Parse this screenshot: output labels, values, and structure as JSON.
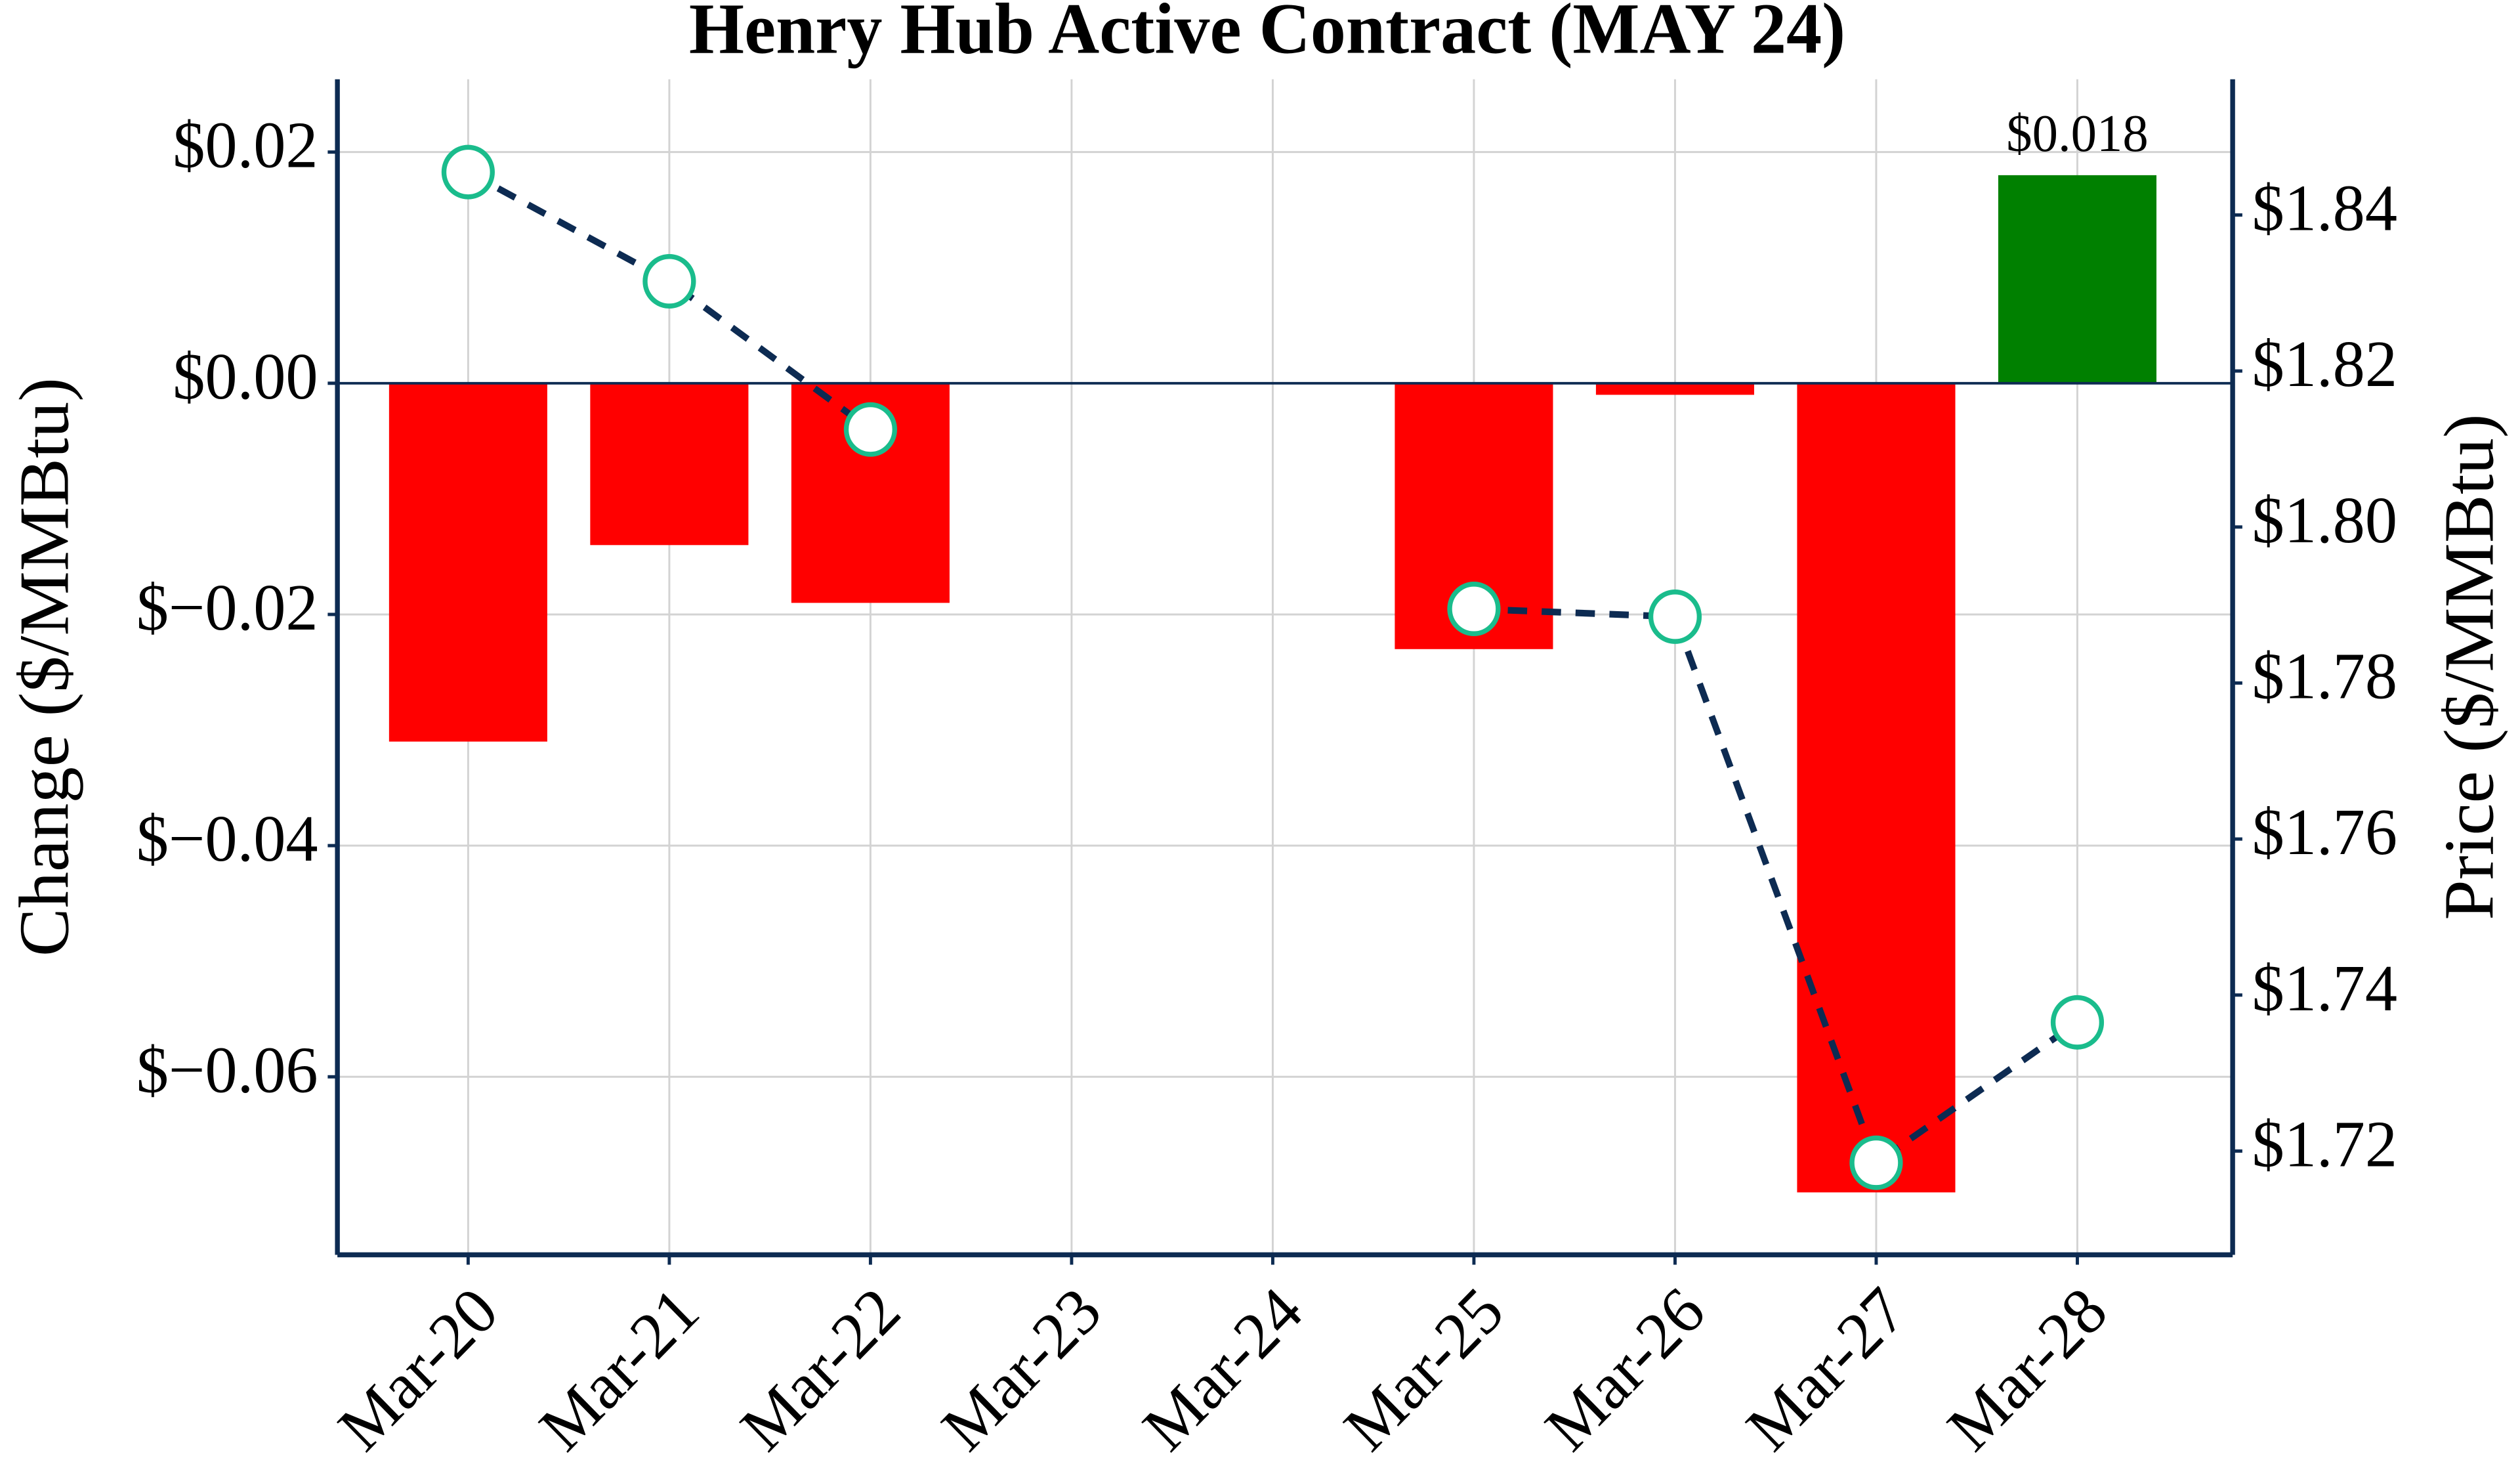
{
  "chart_data": {
    "type": "bar-line",
    "title": "Henry Hub Active Contract (MAY 24)",
    "ylabel": "Change ($/MMBtu)",
    "y2label": "Price ($/MMBtu)",
    "categories": [
      "Mar-20",
      "Mar-21",
      "Mar-22",
      "Mar-23",
      "Mar-24",
      "Mar-25",
      "Mar-26",
      "Mar-27",
      "Mar-28"
    ],
    "bars": {
      "values": [
        -0.031,
        -0.014,
        -0.019,
        null,
        null,
        -0.023,
        -0.001,
        -0.07,
        0.018
      ],
      "value_labels": [
        null,
        null,
        null,
        null,
        null,
        null,
        null,
        null,
        "$0.018"
      ],
      "positive_color": "#008000",
      "negative_color": "#ff0000"
    },
    "line": {
      "axis": "y2",
      "values": [
        1.8455,
        1.8315,
        1.8125,
        null,
        null,
        1.7895,
        1.7885,
        1.7185,
        1.7365
      ],
      "color": "#0d2b52",
      "marker_edge_color": "#1abc8c",
      "marker_fill": "#ffffff",
      "dashed": true
    },
    "ylim": [
      -0.0754,
      0.0263
    ],
    "yticks": [
      {
        "value": -0.06,
        "label": "$−0.06"
      },
      {
        "value": -0.04,
        "label": "$−0.04"
      },
      {
        "value": -0.02,
        "label": "$−0.02"
      },
      {
        "value": 0,
        "label": "$0.00"
      },
      {
        "value": 0.02,
        "label": "$0.02"
      }
    ],
    "y2lim": [
      1.7067,
      1.8574
    ],
    "y2ticks": [
      {
        "value": 1.72,
        "label": "$1.72"
      },
      {
        "value": 1.74,
        "label": "$1.74"
      },
      {
        "value": 1.76,
        "label": "$1.76"
      },
      {
        "value": 1.78,
        "label": "$1.78"
      },
      {
        "value": 1.8,
        "label": "$1.80"
      },
      {
        "value": 1.82,
        "label": "$1.82"
      },
      {
        "value": 1.84,
        "label": "$1.84"
      }
    ],
    "grid": true,
    "axis_color": "#0d2b52"
  }
}
